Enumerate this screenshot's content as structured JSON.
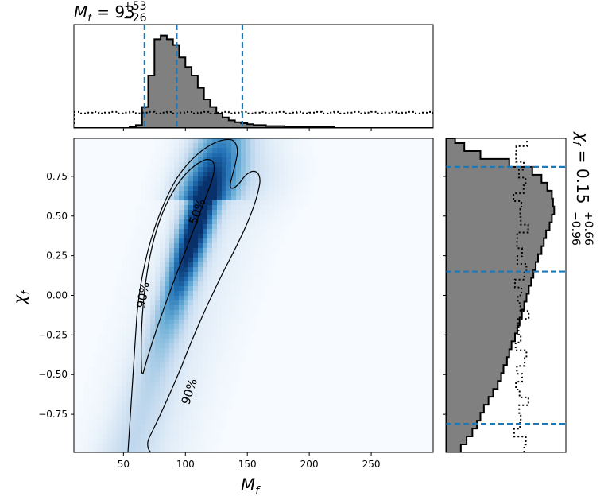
{
  "chart_data": {
    "type": "heatmap",
    "top_title": {
      "symbol": "M",
      "sub": "f",
      "value": "93",
      "sup": "+53",
      "low": "−26"
    },
    "right_title": {
      "symbol": "χ",
      "sub": "f",
      "value": "0.15",
      "sup": "+0.66",
      "low": "−0.96"
    },
    "xlabel": {
      "symbol": "M",
      "sub": "f"
    },
    "ylabel": {
      "symbol": "χ",
      "sub": "f"
    },
    "xlim": [
      10,
      300
    ],
    "ylim": [
      -0.99,
      0.99
    ],
    "x_ticks": [
      50,
      100,
      150,
      200,
      250
    ],
    "x_tick_labels": [
      "50",
      "100",
      "150",
      "200",
      "250"
    ],
    "y_ticks": [
      0.75,
      0.5,
      0.25,
      0.0,
      -0.25,
      -0.5,
      -0.75
    ],
    "y_tick_labels": [
      "0.75",
      "0.50",
      "0.25",
      "0.00",
      "−0.25",
      "−0.50",
      "−0.75"
    ],
    "contour_labels": [
      "50%",
      "90%",
      "90%"
    ],
    "colormap": [
      "#f7fbff",
      "#c6dbef",
      "#6baed6",
      "#2171b5",
      "#08306b"
    ],
    "mf_quantile_lines": [
      67,
      93,
      146
    ],
    "chif_quantile_lines": [
      -0.81,
      0.15,
      0.81
    ],
    "line_color": "#1f77b4",
    "hist_fill": "#808080",
    "mf_posterior_hist": {
      "bin_edges": [
        10,
        15,
        20,
        25,
        30,
        35,
        40,
        45,
        50,
        55,
        60,
        65,
        70,
        75,
        80,
        85,
        90,
        95,
        100,
        105,
        110,
        115,
        120,
        125,
        130,
        135,
        140,
        145,
        150,
        155,
        160,
        165,
        170,
        175,
        180,
        185,
        190,
        195,
        200,
        205,
        210,
        215,
        220,
        225,
        230,
        235,
        240,
        245,
        250,
        255,
        260,
        265,
        270,
        275,
        280,
        285,
        290,
        295,
        300
      ],
      "counts": [
        0,
        0,
        0,
        0,
        0,
        0,
        0,
        0,
        0,
        0.01,
        0.03,
        0.22,
        0.55,
        0.93,
        0.97,
        0.93,
        0.87,
        0.74,
        0.64,
        0.55,
        0.42,
        0.3,
        0.22,
        0.15,
        0.11,
        0.08,
        0.06,
        0.05,
        0.04,
        0.03,
        0.03,
        0.02,
        0.02,
        0.02,
        0.01,
        0.01,
        0.01,
        0.01,
        0.01,
        0.01,
        0.01,
        0.01,
        0,
        0,
        0,
        0,
        0,
        0,
        0,
        0,
        0,
        0,
        0,
        0,
        0,
        0,
        0,
        0
      ]
    },
    "mf_prior_level": 0.16,
    "chif_posterior_hist": {
      "bin_edges": [
        -0.99,
        -0.94,
        -0.89,
        -0.84,
        -0.79,
        -0.74,
        -0.69,
        -0.64,
        -0.59,
        -0.54,
        -0.49,
        -0.44,
        -0.39,
        -0.34,
        -0.29,
        -0.24,
        -0.19,
        -0.14,
        -0.09,
        -0.04,
        0.01,
        0.06,
        0.11,
        0.16,
        0.21,
        0.26,
        0.31,
        0.36,
        0.41,
        0.46,
        0.51,
        0.56,
        0.61,
        0.66,
        0.71,
        0.76,
        0.81,
        0.86,
        0.91,
        0.96,
        0.99
      ],
      "counts": [
        0.13,
        0.18,
        0.23,
        0.27,
        0.3,
        0.33,
        0.37,
        0.41,
        0.45,
        0.48,
        0.5,
        0.53,
        0.55,
        0.57,
        0.6,
        0.62,
        0.64,
        0.66,
        0.68,
        0.7,
        0.72,
        0.74,
        0.76,
        0.78,
        0.8,
        0.83,
        0.85,
        0.87,
        0.9,
        0.92,
        0.94,
        0.93,
        0.92,
        0.88,
        0.83,
        0.75,
        0.55,
        0.3,
        0.16,
        0.08
      ]
    },
    "chif_prior_level": 0.65
  }
}
